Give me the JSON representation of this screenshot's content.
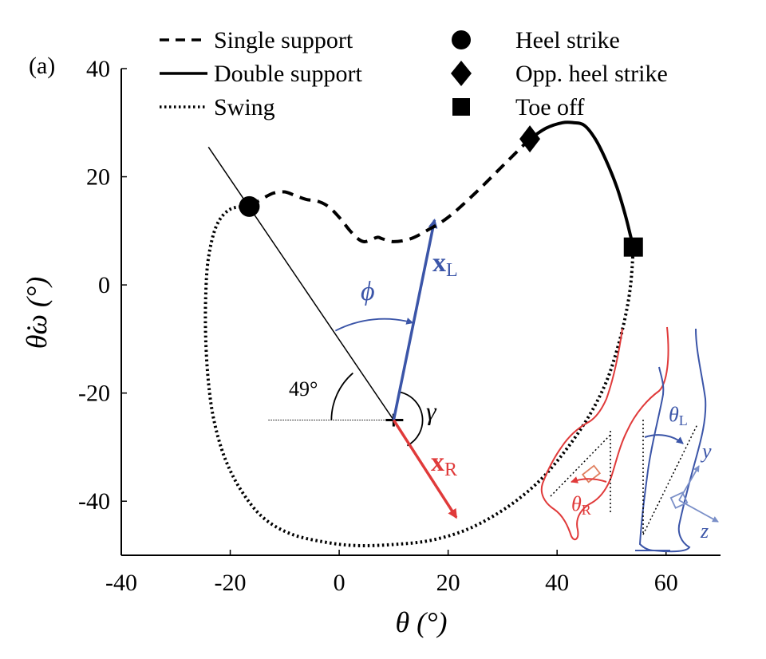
{
  "panel_label": "(a)",
  "chart_data": {
    "type": "line",
    "xlabel": "θ (°)",
    "ylabel": "θ̇ω (°)",
    "xlim": [
      -40,
      70
    ],
    "ylim": [
      -50,
      40
    ],
    "xticks": [
      -40,
      -20,
      0,
      20,
      40,
      60
    ],
    "yticks": [
      40,
      20,
      0,
      -20,
      -40
    ],
    "grid": false,
    "legend_placement": "top",
    "legend": {
      "line_styles": [
        {
          "label": "Single support",
          "style": "dashed"
        },
        {
          "label": "Double support",
          "style": "solid"
        },
        {
          "label": "Swing",
          "style": "dotted"
        }
      ],
      "markers": [
        {
          "label": "Heel strike",
          "marker": "circle"
        },
        {
          "label": "Opp. heel strike",
          "marker": "diamond"
        },
        {
          "label": "Toe off",
          "marker": "square"
        }
      ]
    },
    "series": [
      {
        "style": "dashed",
        "points": [
          [
            -16.5,
            14.5
          ],
          [
            -14,
            16
          ],
          [
            -12,
            17
          ],
          [
            -10,
            17.2
          ],
          [
            -8,
            16.5
          ],
          [
            -6,
            15.8
          ],
          [
            -4,
            15.5
          ],
          [
            -2,
            14.5
          ],
          [
            0,
            12.5
          ],
          [
            2,
            10
          ],
          [
            3.5,
            8.5
          ],
          [
            4.5,
            8
          ],
          [
            5.5,
            8.2
          ],
          [
            7,
            8.8
          ],
          [
            8,
            8.5
          ],
          [
            10,
            8
          ],
          [
            13,
            8.5
          ],
          [
            16,
            10
          ],
          [
            20,
            12.5
          ],
          [
            25,
            17
          ],
          [
            30,
            22
          ],
          [
            35,
            27
          ]
        ]
      },
      {
        "style": "solid",
        "points": [
          [
            35,
            27
          ],
          [
            38,
            29
          ],
          [
            41,
            30
          ],
          [
            43,
            30
          ],
          [
            45,
            29.5
          ],
          [
            47,
            27
          ],
          [
            49,
            23
          ],
          [
            51,
            18
          ],
          [
            52.5,
            13
          ],
          [
            53.5,
            9
          ],
          [
            54,
            7
          ]
        ]
      },
      {
        "style": "dotted",
        "points": [
          [
            54,
            7
          ],
          [
            53.5,
            0
          ],
          [
            52.5,
            -6
          ],
          [
            51,
            -12
          ],
          [
            49,
            -18
          ],
          [
            46,
            -24
          ],
          [
            42,
            -30
          ],
          [
            37,
            -36
          ],
          [
            31,
            -41
          ],
          [
            24,
            -45
          ],
          [
            17,
            -47.2
          ],
          [
            10,
            -48
          ],
          [
            3,
            -48.2
          ],
          [
            -3,
            -47.5
          ],
          [
            -9,
            -46
          ],
          [
            -14,
            -43
          ],
          [
            -18,
            -38
          ],
          [
            -21,
            -32
          ],
          [
            -23,
            -25
          ],
          [
            -24,
            -18
          ],
          [
            -24.5,
            -10
          ],
          [
            -24.5,
            -2
          ],
          [
            -24,
            5
          ],
          [
            -22.5,
            11
          ],
          [
            -20,
            14
          ],
          [
            -16.5,
            14.5
          ]
        ]
      }
    ],
    "markers": [
      {
        "type": "heel-strike",
        "marker": "circle",
        "x": -16.5,
        "y": 14.5
      },
      {
        "type": "opp-heel-strike",
        "marker": "diamond",
        "x": 35,
        "y": 27
      },
      {
        "type": "toe-off",
        "marker": "square",
        "x": 54,
        "y": 7
      }
    ],
    "annotations": {
      "center": [
        10,
        -25
      ],
      "principal_line": {
        "from": [
          -24,
          25.5
        ],
        "to": [
          10,
          -25
        ]
      },
      "reference_line": {
        "from": [
          -13,
          -25
        ],
        "to": [
          10,
          -25
        ]
      },
      "x_L": {
        "label": "x",
        "subscript": "L",
        "from": [
          10,
          -25
        ],
        "to": [
          17.5,
          12
        ],
        "color": "#3b55a8"
      },
      "x_R": {
        "label": "x",
        "subscript": "R",
        "from": [
          10,
          -25
        ],
        "to": [
          21.5,
          -43
        ],
        "color": "#e03a3a"
      },
      "phi_label": "ϕ",
      "gamma_label": "γ",
      "angle_label": "49°"
    },
    "inset": {
      "theta_L": {
        "label": "θ",
        "subscript": "L"
      },
      "theta_R": {
        "label": "θ",
        "subscript": "R"
      },
      "axis_y": "y",
      "axis_z": "z",
      "left_color": "#3b55a8",
      "right_color": "#e03a3a"
    }
  }
}
